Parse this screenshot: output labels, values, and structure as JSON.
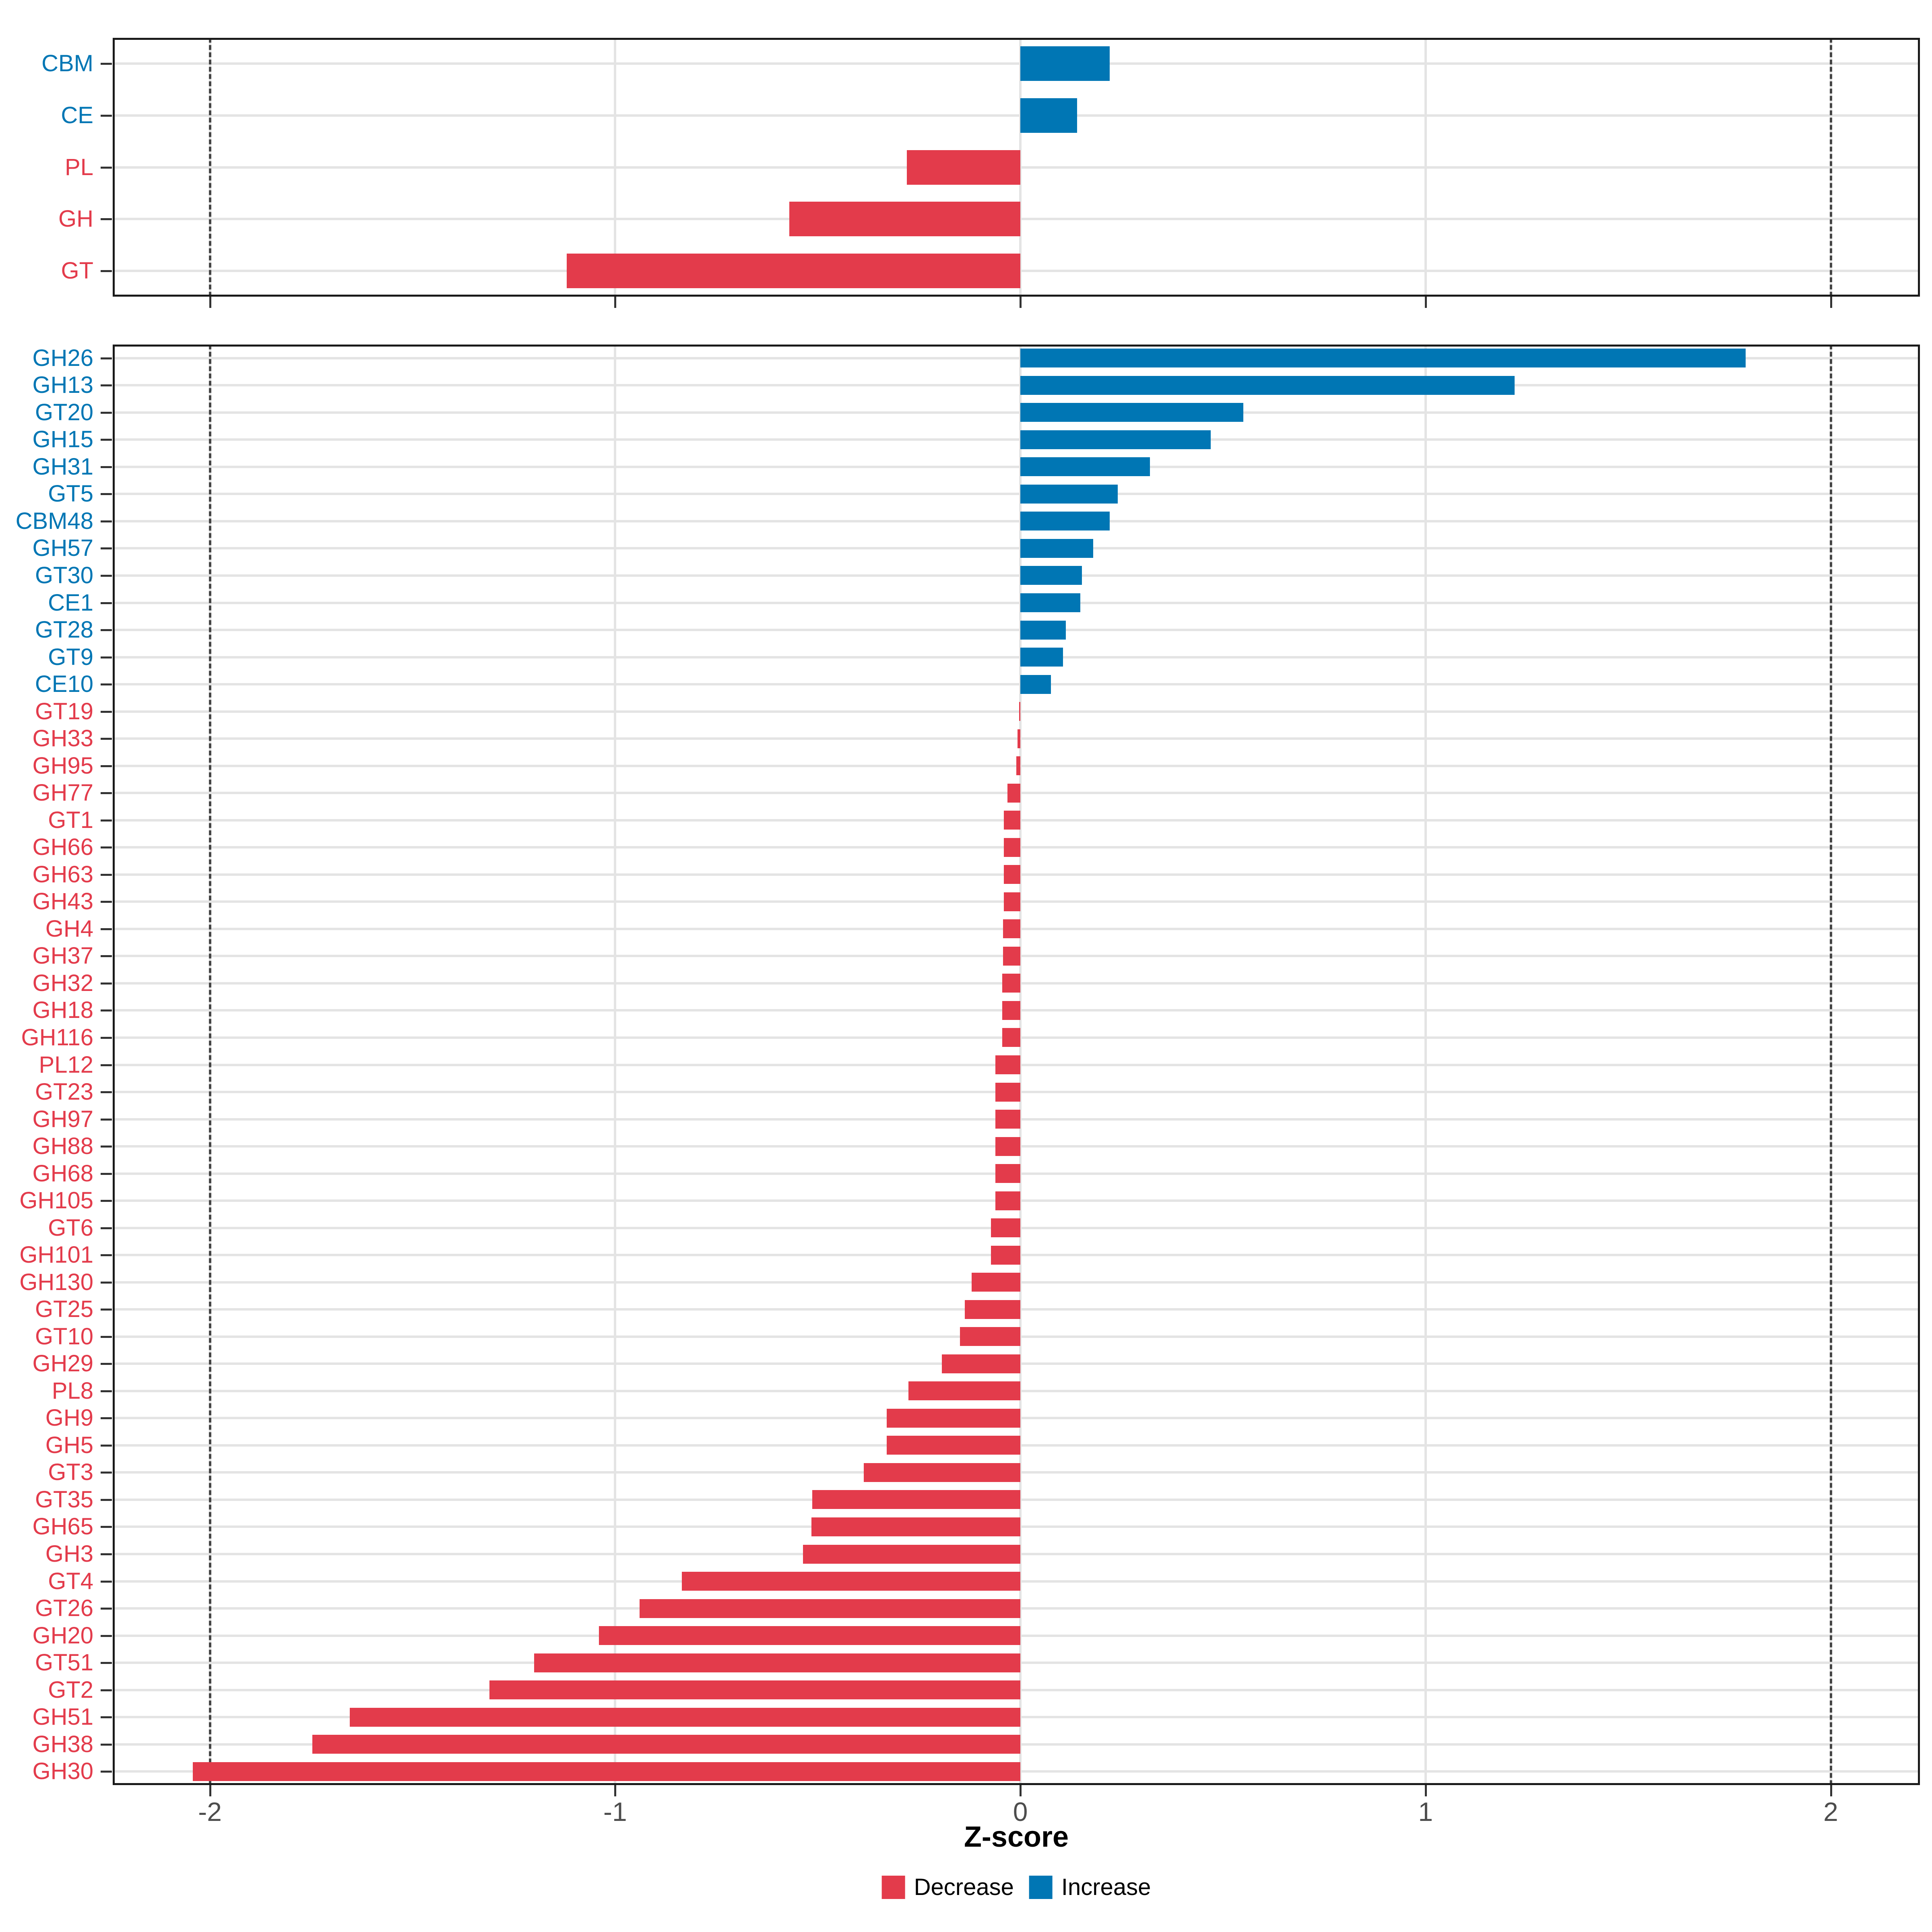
{
  "x_axis": {
    "label": "Z-score",
    "ticks": [
      "-2",
      "-1",
      "0",
      "1",
      "2"
    ],
    "tick_values": [
      -2,
      -1,
      0,
      1,
      2
    ],
    "limits": [
      -2.24,
      2.22
    ],
    "dashed_lines": [
      -2,
      2
    ]
  },
  "legend": {
    "items": [
      {
        "label": "Decrease",
        "color": "#e33b4b"
      },
      {
        "label": "Increase",
        "color": "#0076b4"
      }
    ]
  },
  "colors": {
    "decrease": "#e33b4b",
    "increase": "#0076b4",
    "grid": "#e4e4e4",
    "dashed_line": "#454545",
    "panel_border": "#1a1a1a",
    "tick_text": "#4d4d4d"
  },
  "chart_data": [
    {
      "type": "bar",
      "panel": "top",
      "orientation": "horizontal",
      "xlabel": "Z-score",
      "xlim": [
        -2.24,
        2.22
      ],
      "grid": true,
      "categories": [
        "CBM",
        "CE",
        "PL",
        "GH",
        "GT"
      ],
      "values": [
        0.22,
        0.14,
        -0.28,
        -0.57,
        -1.12
      ]
    },
    {
      "type": "bar",
      "panel": "bottom",
      "orientation": "horizontal",
      "xlabel": "Z-score",
      "xlim": [
        -2.24,
        2.22
      ],
      "grid": true,
      "categories": [
        "GH26",
        "GH13",
        "GT20",
        "GH15",
        "GH31",
        "GT5",
        "CBM48",
        "GH57",
        "GT30",
        "CE1",
        "GT28",
        "GT9",
        "CE10",
        "GT19",
        "GH33",
        "GH95",
        "GH77",
        "GT1",
        "GH66",
        "GH63",
        "GH43",
        "GH4",
        "GH37",
        "GH32",
        "GH18",
        "GH116",
        "PL12",
        "GT23",
        "GH97",
        "GH88",
        "GH68",
        "GH105",
        "GT6",
        "GH101",
        "GH130",
        "GT25",
        "GT10",
        "GH29",
        "PL8",
        "GH9",
        "GH5",
        "GT3",
        "GT35",
        "GH65",
        "GH3",
        "GT4",
        "GT26",
        "GH20",
        "GT51",
        "GT2",
        "GH51",
        "GH38",
        "GH30"
      ],
      "values": [
        1.79,
        1.22,
        0.55,
        0.47,
        0.32,
        0.24,
        0.22,
        0.18,
        0.152,
        0.148,
        0.112,
        0.105,
        0.075,
        -0.003,
        -0.007,
        -0.01,
        -0.032,
        -0.041,
        -0.041,
        -0.041,
        -0.041,
        -0.043,
        -0.043,
        -0.045,
        -0.045,
        -0.045,
        -0.062,
        -0.062,
        -0.062,
        -0.062,
        -0.062,
        -0.062,
        -0.073,
        -0.073,
        -0.12,
        -0.137,
        -0.149,
        -0.194,
        -0.276,
        -0.33,
        -0.33,
        -0.386,
        -0.514,
        -0.516,
        -0.536,
        -0.835,
        -0.94,
        -1.04,
        -1.2,
        -1.31,
        -1.655,
        -1.747,
        -2.042
      ]
    }
  ]
}
